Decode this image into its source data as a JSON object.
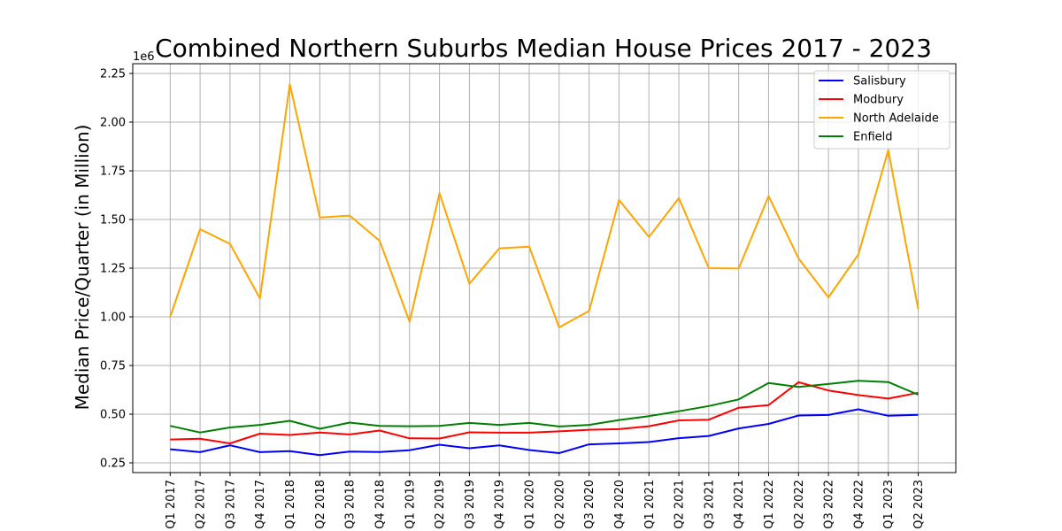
{
  "chart_data": {
    "type": "line",
    "title": "Combined Northern Suburbs Median House Prices 2017 - 2023",
    "xlabel": "",
    "ylabel": "Median Price/Quarter (in Million)",
    "y_offset_label": "1e6",
    "ylim": [
      0.2,
      2.3
    ],
    "yticks": [
      "0.25",
      "0.50",
      "0.75",
      "1.00",
      "1.25",
      "1.50",
      "1.75",
      "2.00",
      "2.25"
    ],
    "grid": true,
    "legend_position": "top-right",
    "categories": [
      "Q1 2017",
      "Q2 2017",
      "Q3 2017",
      "Q4 2017",
      "Q1 2018",
      "Q2 2018",
      "Q3 2018",
      "Q4 2018",
      "Q1 2019",
      "Q2 2019",
      "Q3 2019",
      "Q4 2019",
      "Q1 2020",
      "Q2 2020",
      "Q3 2020",
      "Q4 2020",
      "Q1 2021",
      "Q2 2021",
      "Q3 2021",
      "Q4 2021",
      "Q1 2022",
      "Q2 2022",
      "Q3 2022",
      "Q4 2022",
      "Q1 2023",
      "Q2 2023"
    ],
    "series": [
      {
        "name": "Salisbury",
        "color": "#0000ff",
        "values": [
          0.32,
          0.305,
          0.34,
          0.305,
          0.31,
          0.29,
          0.308,
          0.306,
          0.315,
          0.343,
          0.325,
          0.34,
          0.316,
          0.3,
          0.345,
          0.35,
          0.357,
          0.377,
          0.388,
          0.427,
          0.45,
          0.493,
          0.496,
          0.525,
          0.492,
          0.497
        ]
      },
      {
        "name": "Modbury",
        "color": "#ff0000",
        "values": [
          0.37,
          0.374,
          0.35,
          0.4,
          0.393,
          0.406,
          0.396,
          0.416,
          0.376,
          0.375,
          0.407,
          0.405,
          0.405,
          0.412,
          0.42,
          0.423,
          0.438,
          0.468,
          0.472,
          0.533,
          0.547,
          0.664,
          0.622,
          0.598,
          0.58,
          0.61
        ]
      },
      {
        "name": "North Adelaide",
        "color": "#ffa500",
        "values": [
          1.0,
          1.45,
          1.375,
          1.095,
          2.195,
          1.51,
          1.52,
          1.39,
          0.975,
          1.635,
          1.17,
          1.352,
          1.36,
          0.946,
          1.03,
          1.6,
          1.41,
          1.61,
          1.25,
          1.248,
          1.62,
          1.3,
          1.1,
          1.32,
          1.856,
          1.04
        ]
      },
      {
        "name": "Enfield",
        "color": "#008000",
        "values": [
          0.44,
          0.406,
          0.432,
          0.445,
          0.466,
          0.425,
          0.457,
          0.44,
          0.438,
          0.44,
          0.455,
          0.445,
          0.455,
          0.437,
          0.445,
          0.47,
          0.49,
          0.515,
          0.542,
          0.576,
          0.66,
          0.64,
          0.655,
          0.672,
          0.665,
          0.6
        ]
      }
    ]
  }
}
